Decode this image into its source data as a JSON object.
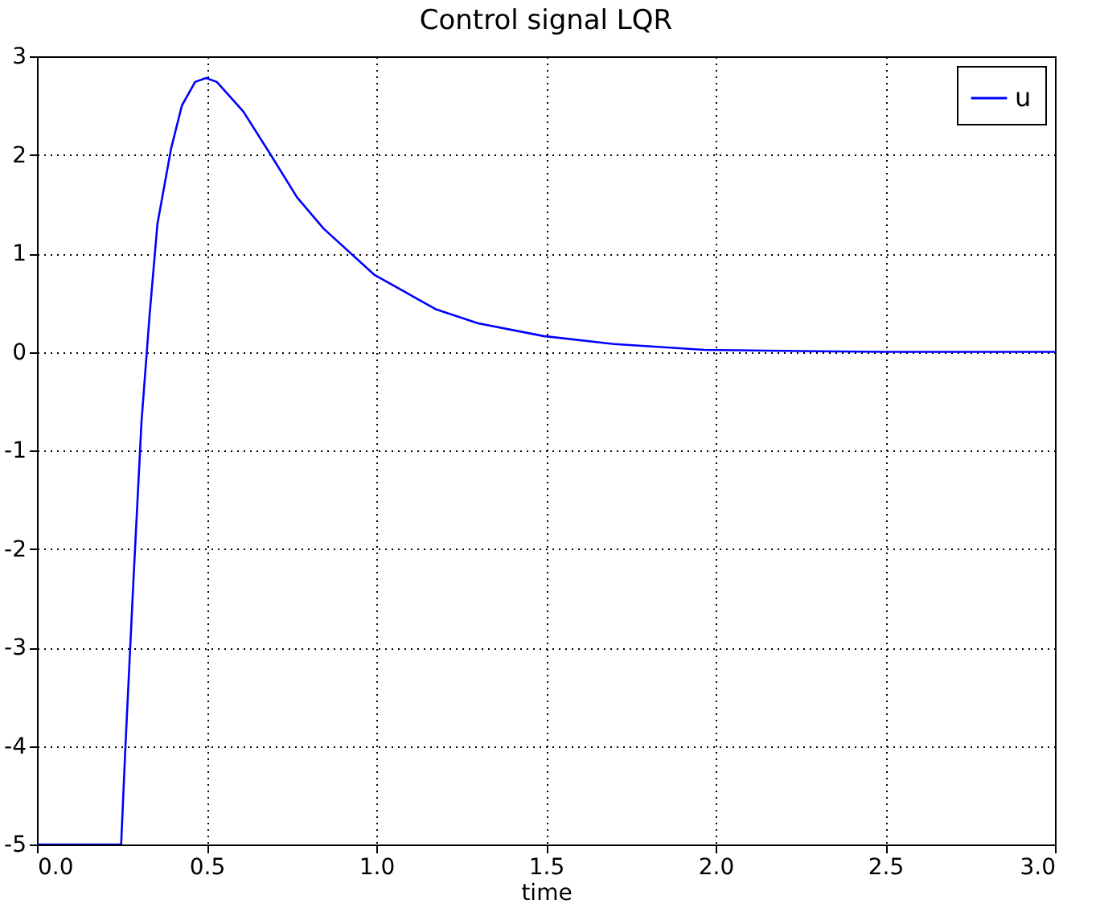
{
  "chart_data": {
    "type": "line",
    "title": "Control signal LQR",
    "xlabel": "time",
    "xlim": [
      0,
      3
    ],
    "ylim": [
      -5,
      3
    ],
    "xticks": [
      {
        "value": 0,
        "label": "0.0"
      },
      {
        "value": 0.5,
        "label": "0.5"
      },
      {
        "value": 1,
        "label": "1.0"
      },
      {
        "value": 1.5,
        "label": "1.5"
      },
      {
        "value": 2,
        "label": "2.0"
      },
      {
        "value": 2.5,
        "label": "2.5"
      },
      {
        "value": 3,
        "label": "3.0"
      }
    ],
    "yticks": [
      -5,
      -4,
      -3,
      -2,
      -1,
      0,
      1,
      2,
      3
    ],
    "grid": true,
    "legend": "top right",
    "marker": "none",
    "line_style": "solid",
    "series": [
      {
        "name": "u",
        "color": "#0000ff",
        "x": [
          0,
          0.1,
          0.2,
          0.248,
          0.261,
          0.284,
          0.308,
          0.332,
          0.355,
          0.395,
          0.427,
          0.466,
          0.498,
          0.53,
          0.608,
          0.687,
          0.766,
          0.845,
          0.995,
          1.177,
          1.3,
          1.493,
          1.7,
          1.967,
          2.2,
          2.5,
          2.8,
          3.0
        ],
        "values": [
          -5,
          -5,
          -5,
          -5,
          -3.98,
          -2.34,
          -0.71,
          0.38,
          1.3,
          2.06,
          2.5,
          2.74,
          2.78,
          2.74,
          2.44,
          2.01,
          1.57,
          1.25,
          0.78,
          0.43,
          0.29,
          0.16,
          0.08,
          0.02,
          0.01,
          0,
          0,
          0
        ]
      }
    ]
  }
}
